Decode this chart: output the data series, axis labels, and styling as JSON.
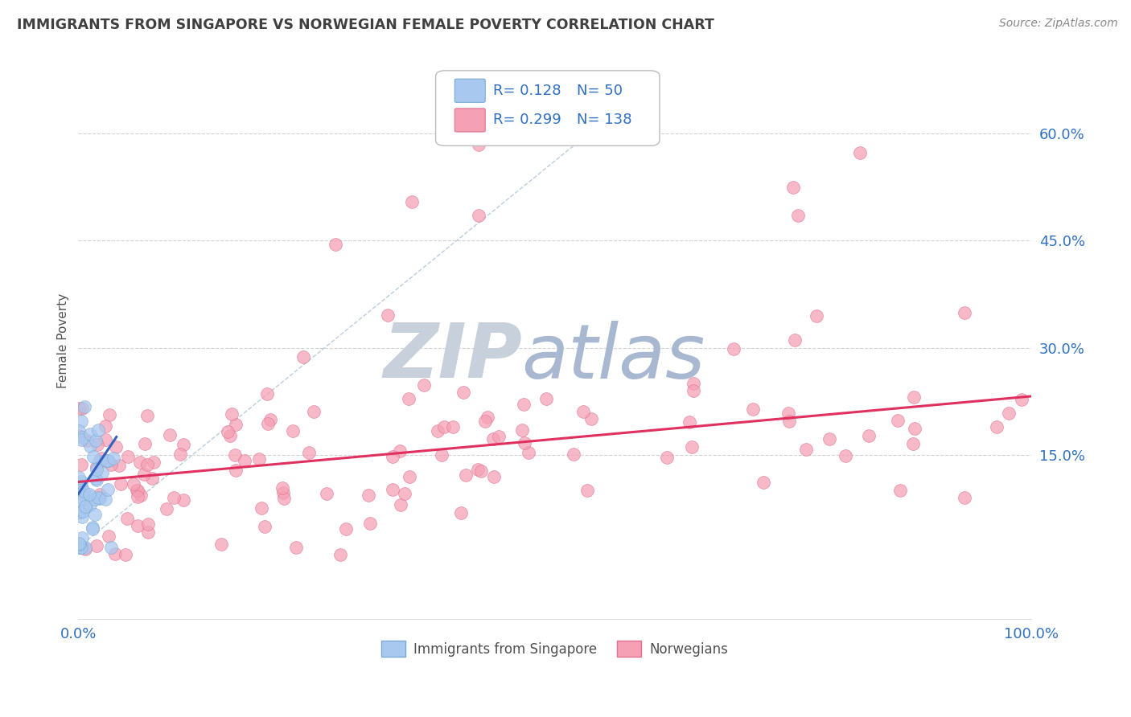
{
  "title": "IMMIGRANTS FROM SINGAPORE VS NORWEGIAN FEMALE POVERTY CORRELATION CHART",
  "source": "Source: ZipAtlas.com",
  "ylabel": "Female Poverty",
  "y_ticks": [
    0.15,
    0.3,
    0.45,
    0.6
  ],
  "y_tick_labels": [
    "15.0%",
    "30.0%",
    "45.0%",
    "60.0%"
  ],
  "x_lim": [
    0.0,
    1.0
  ],
  "y_lim": [
    -0.08,
    0.7
  ],
  "legend_r1": "R= 0.128",
  "legend_n1": "N= 50",
  "legend_r2": "R= 0.299",
  "legend_n2": "N= 138",
  "series1_color": "#A8C8F0",
  "series2_color": "#F5A0B5",
  "series1_edge": "#7AAAD0",
  "series2_edge": "#E07090",
  "trend1_color": "#3060C0",
  "trend2_color": "#E03060",
  "diag_color": "#B0C4D8",
  "grid_color": "#C8C8C8",
  "title_color": "#404040",
  "legend_text_color": "#3070C0",
  "watermark_zip_color": "#C8D0DC",
  "watermark_atlas_color": "#A8B8D0",
  "background_color": "#FFFFFF"
}
